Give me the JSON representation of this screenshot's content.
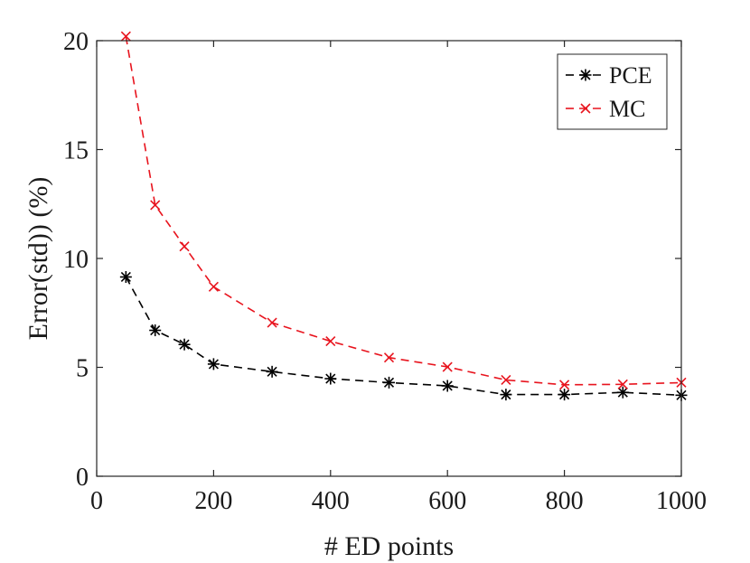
{
  "chart_data": {
    "type": "line",
    "title": "",
    "xlabel": "# ED points",
    "ylabel": "Error(std)) (%)",
    "xlim": [
      0,
      1000
    ],
    "ylim": [
      0,
      20
    ],
    "xticks": [
      0,
      200,
      400,
      600,
      800,
      1000
    ],
    "yticks": [
      0,
      5,
      10,
      15,
      20
    ],
    "grid": false,
    "legend_position": "top-right",
    "x": [
      50,
      100,
      150,
      200,
      300,
      400,
      500,
      600,
      700,
      800,
      900,
      1000
    ],
    "series": [
      {
        "name": "PCE",
        "color": "#000000",
        "marker": "asterisk",
        "line_style": "dashed",
        "values": [
          9.15,
          6.7,
          6.05,
          5.15,
          4.8,
          4.48,
          4.3,
          4.15,
          3.75,
          3.75,
          3.85,
          3.72
        ]
      },
      {
        "name": "MC",
        "color": "#e8141e",
        "marker": "x",
        "line_style": "dashed",
        "values": [
          20.2,
          12.45,
          10.55,
          8.7,
          7.05,
          6.2,
          5.45,
          5.02,
          4.42,
          4.2,
          4.22,
          4.3
        ]
      }
    ]
  }
}
